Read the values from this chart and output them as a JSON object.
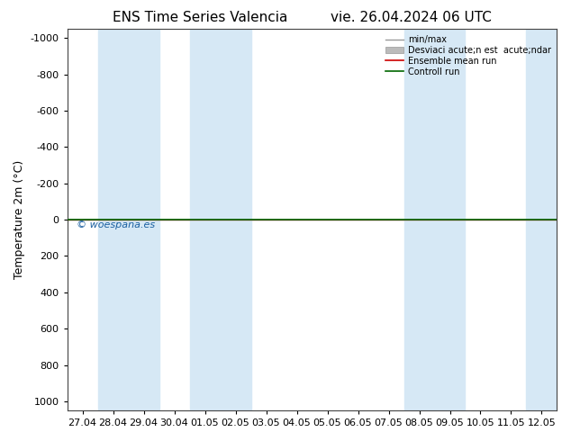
{
  "title_left": "ENS Time Series Valencia",
  "title_right": "vie. 26.04.2024 06 UTC",
  "ylabel": "Temperature 2m (°C)",
  "xlabel_ticks": [
    "27.04",
    "28.04",
    "29.04",
    "30.04",
    "01.05",
    "02.05",
    "03.05",
    "04.05",
    "05.05",
    "06.05",
    "07.05",
    "08.05",
    "09.05",
    "10.05",
    "11.05",
    "12.05"
  ],
  "yticks": [
    -1000,
    -800,
    -600,
    -400,
    -200,
    0,
    200,
    400,
    600,
    800,
    1000
  ],
  "ylim": [
    -1050,
    1050
  ],
  "xlim": [
    -0.5,
    15.5
  ],
  "watermark": "© woespana.es",
  "bg_color": "#ffffff",
  "plot_bg_color": "#ffffff",
  "shaded_band_color": "#d6e8f5",
  "shaded_columns": [
    [
      0.5,
      2.5
    ],
    [
      3.5,
      5.5
    ],
    [
      10.5,
      12.5
    ],
    [
      14.5,
      15.5
    ]
  ],
  "ensemble_mean_color": "#cc0000",
  "control_run_color": "#006600",
  "minmax_color": "#999999",
  "std_band_color": "#bbbbbb",
  "legend_labels": [
    "min/max",
    "Desviaci acute;n est  acute;ndar",
    "Ensemble mean run",
    "Controll run"
  ],
  "line_y": 0,
  "title_fontsize": 11,
  "tick_fontsize": 8,
  "ylabel_fontsize": 9,
  "watermark_fontsize": 8,
  "watermark_color": "#1a5fa0"
}
